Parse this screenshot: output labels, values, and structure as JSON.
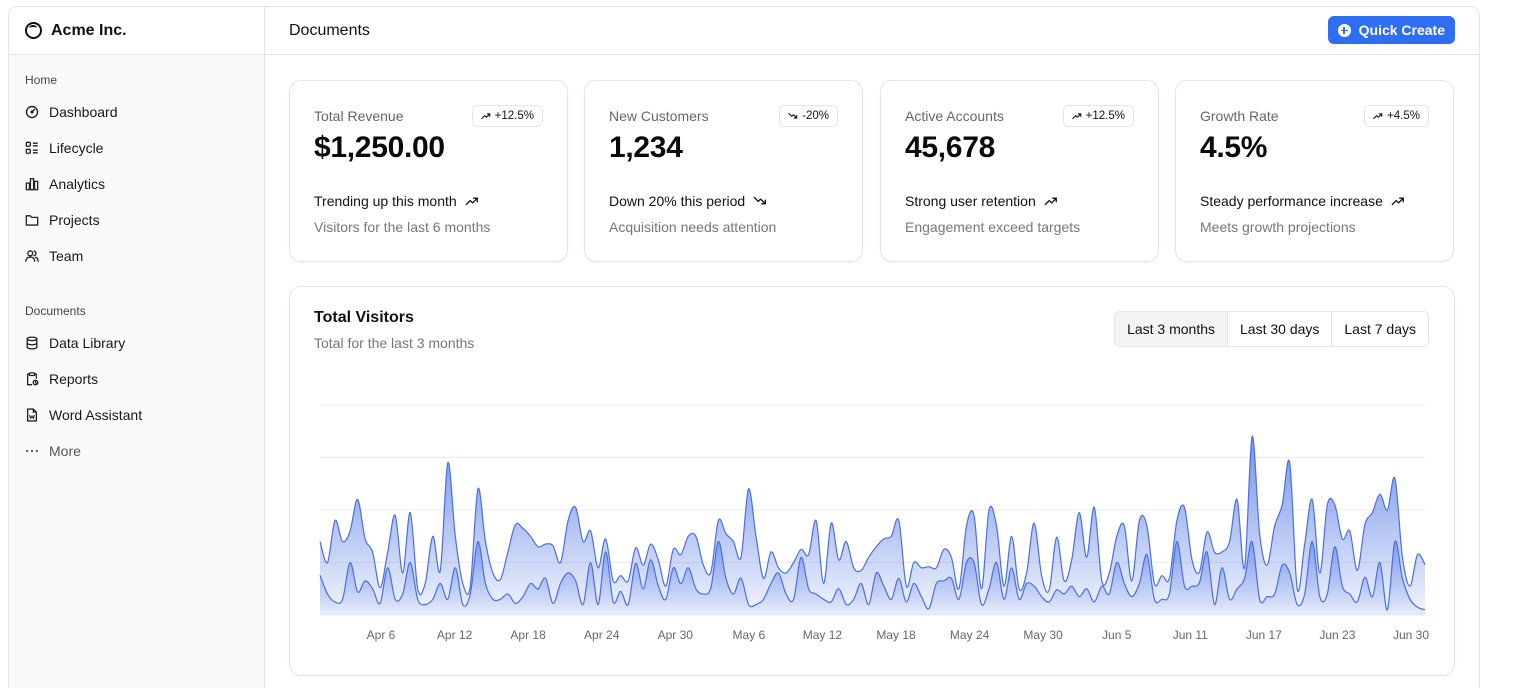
{
  "brand": {
    "name": "Acme Inc."
  },
  "sidebar": {
    "home_label": "Home",
    "home_items": [
      {
        "label": "Dashboard",
        "icon": "dashboard-icon"
      },
      {
        "label": "Lifecycle",
        "icon": "list-icon"
      },
      {
        "label": "Analytics",
        "icon": "bar-chart-icon"
      },
      {
        "label": "Projects",
        "icon": "folder-icon"
      },
      {
        "label": "Team",
        "icon": "users-icon"
      }
    ],
    "documents_label": "Documents",
    "document_items": [
      {
        "label": "Data Library",
        "icon": "database-icon"
      },
      {
        "label": "Reports",
        "icon": "clipboard-icon"
      },
      {
        "label": "Word Assistant",
        "icon": "file-word-icon"
      }
    ],
    "more_label": "More"
  },
  "header": {
    "title": "Documents",
    "quick_create_label": "Quick Create"
  },
  "cards": [
    {
      "label": "Total Revenue",
      "badge": "+12.5%",
      "badge_trend": "up",
      "value": "$1,250.00",
      "trend_text": "Trending up this month",
      "trend": "up",
      "description": "Visitors for the last 6 months"
    },
    {
      "label": "New Customers",
      "badge": "-20%",
      "badge_trend": "down",
      "value": "1,234",
      "trend_text": "Down 20% this period",
      "trend": "down",
      "description": "Acquisition needs attention"
    },
    {
      "label": "Active Accounts",
      "badge": "+12.5%",
      "badge_trend": "up",
      "value": "45,678",
      "trend_text": "Strong user retention",
      "trend": "up",
      "description": "Engagement exceed targets"
    },
    {
      "label": "Growth Rate",
      "badge": "+4.5%",
      "badge_trend": "up",
      "value": "4.5%",
      "trend_text": "Steady performance increase",
      "trend": "up",
      "description": "Meets growth projections"
    }
  ],
  "chart_section": {
    "title": "Total Visitors",
    "subtitle": "Total for the last 3 months",
    "ranges": [
      {
        "label": "Last 3 months",
        "active": true
      },
      {
        "label": "Last 30 days",
        "active": false
      },
      {
        "label": "Last 7 days",
        "active": false
      }
    ]
  },
  "colors": {
    "accent": "#2e6ff2",
    "series_stroke": "#4a6fe0",
    "series_fill": "#7b95ea"
  },
  "chart_data": {
    "type": "area",
    "tick_labels": [
      "Apr 6",
      "Apr 12",
      "Apr 18",
      "Apr 24",
      "Apr 30",
      "May 6",
      "May 12",
      "May 18",
      "May 24",
      "May 30",
      "Jun 5",
      "Jun 11",
      "Jun 17",
      "Jun 23",
      "Jun 30"
    ],
    "stacked": true,
    "grid": true,
    "ylim": [
      0,
      400
    ],
    "series": [
      {
        "values": [
          76,
          40,
          25,
          30,
          100,
          44,
          65,
          50,
          22,
          90,
          30,
          40,
          100,
          30,
          20,
          30,
          60,
          30,
          90,
          20,
          40,
          140,
          60,
          30,
          30,
          40,
          22,
          35,
          60,
          50,
          70,
          22,
          60,
          80,
          65,
          20,
          100,
          20,
          120,
          25,
          45,
          20,
          98,
          50,
          105,
          55,
          30,
          90,
          60,
          90,
          50,
          40,
          52,
          140,
          70,
          40,
          70,
          20,
          20,
          30,
          60,
          80,
          40,
          30,
          110,
          50,
          40,
          30,
          25,
          50,
          20,
          30,
          60,
          20,
          80,
          55,
          30,
          70,
          25,
          60,
          35,
          12,
          60,
          65,
          70,
          30,
          100,
          100,
          20,
          50,
          100,
          30,
          90,
          30,
          60,
          55,
          35,
          25,
          48,
          40,
          55,
          35,
          50,
          25,
          55,
          40,
          100,
          60,
          35,
          60,
          115,
          30,
          30,
          40,
          140,
          55,
          55,
          62,
          120,
          20,
          90,
          30,
          50,
          70,
          140,
          30,
          35,
          40,
          95,
          80,
          20,
          40,
          140,
          35,
          40,
          130,
          55,
          40,
          25,
          72,
          35,
          100,
          10,
          140,
          70,
          30,
          15,
          10
        ]
      },
      {
        "values": [
          64,
          60,
          155,
          110,
          60,
          176,
          80,
          70,
          30,
          30,
          160,
          40,
          95,
          20,
          40,
          120,
          25,
          260,
          60,
          40,
          15,
          100,
          80,
          50,
          38,
          80,
          150,
          130,
          90,
          80,
          65,
          110,
          40,
          100,
          140,
          120,
          60,
          70,
          25,
          40,
          30,
          45,
          30,
          45,
          30,
          50,
          25,
          35,
          55,
          60,
          100,
          55,
          30,
          40,
          85,
          100,
          40,
          220,
          130,
          40,
          60,
          10,
          40,
          70,
          15,
          65,
          140,
          30,
          150,
          55,
          120,
          60,
          25,
          90,
          50,
          90,
          120,
          110,
          30,
          40,
          55,
          80,
          30,
          60,
          40,
          20,
          70,
          90,
          30,
          150,
          70,
          25,
          60,
          20,
          20,
          120,
          40,
          22,
          100,
          25,
          50,
          160,
          60,
          180,
          10,
          40,
          50,
          110,
          30,
          120,
          55,
          30,
          45,
          30,
          40,
          150,
          50,
          20,
          38,
          100,
          30,
          110,
          170,
          20,
          200,
          125,
          60,
          130,
          115,
          210,
          30,
          95,
          80,
          45,
          170,
          80,
          90,
          120,
          60,
          100,
          160,
          130,
          190,
          120,
          40,
          25,
          100,
          86
        ]
      }
    ]
  }
}
